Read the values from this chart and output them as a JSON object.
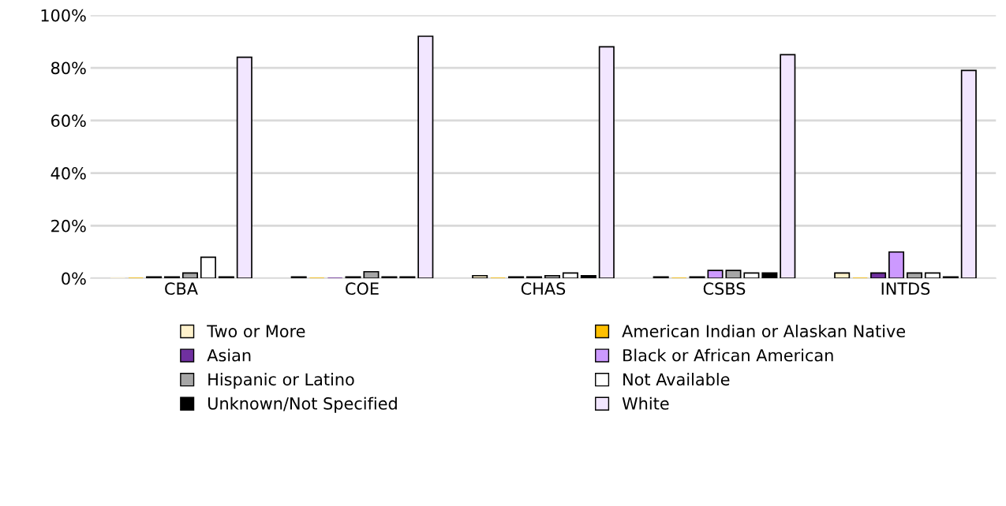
{
  "chart_data": {
    "type": "bar",
    "categories": [
      "CBA",
      "COE",
      "CHAS",
      "CSBS",
      "INTDS"
    ],
    "series": [
      {
        "name": "Two or More",
        "color": "#fff2cc",
        "values": [
          0,
          0.5,
          1,
          0.5,
          2
        ]
      },
      {
        "name": "American Indian or Alaskan Native",
        "color": "#ffc000",
        "values": [
          0,
          0,
          0,
          0,
          0
        ]
      },
      {
        "name": "Asian",
        "color": "#7030a0",
        "values": [
          0.5,
          0,
          0.5,
          0.5,
          2
        ]
      },
      {
        "name": "Black or African American",
        "color": "#cc99ff",
        "values": [
          0.5,
          0.5,
          0.5,
          3,
          10
        ]
      },
      {
        "name": "Hispanic or Latino",
        "color": "#a6a6a6",
        "values": [
          2,
          2.5,
          1,
          3,
          2
        ]
      },
      {
        "name": "Not Available",
        "color": "#ffffff",
        "values": [
          8,
          0.5,
          2,
          2,
          2
        ]
      },
      {
        "name": "Unknown/Not Specified",
        "color": "#000000",
        "values": [
          0.5,
          0.5,
          1,
          2,
          0.5
        ]
      },
      {
        "name": "White",
        "color": "#f2e6ff",
        "values": [
          84,
          92,
          88,
          85,
          79
        ]
      }
    ],
    "ylim": [
      0,
      100
    ],
    "yticks": [
      {
        "value": 0,
        "label": "0%"
      },
      {
        "value": 20,
        "label": "20%"
      },
      {
        "value": 40,
        "label": "40%"
      },
      {
        "value": 60,
        "label": "60%"
      },
      {
        "value": 80,
        "label": "80%"
      },
      {
        "value": 100,
        "label": "100%"
      }
    ],
    "grid": "y",
    "legend": "bottom"
  }
}
